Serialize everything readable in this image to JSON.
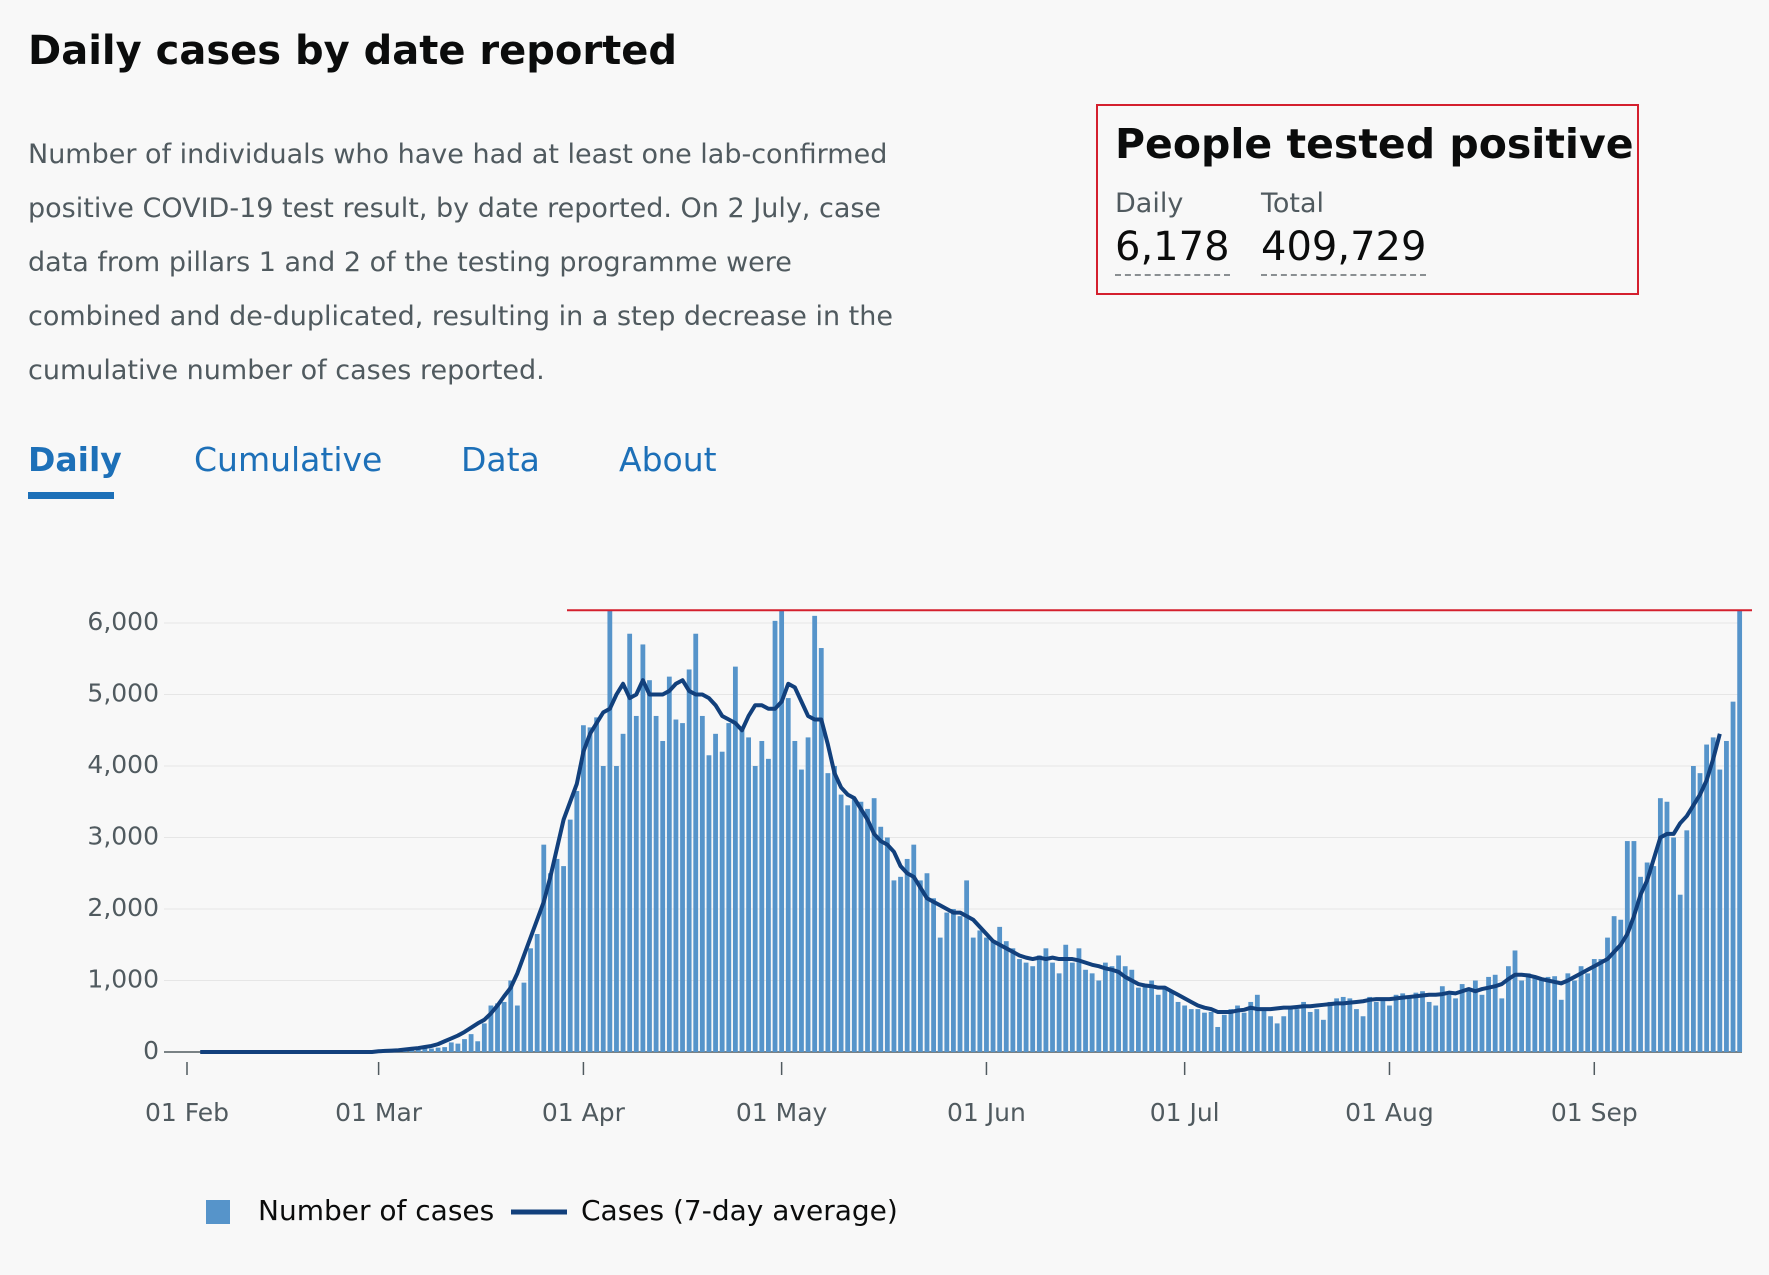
{
  "header": {
    "title": "Daily cases by date reported",
    "description": "Number of individuals who have had at least one lab-confirmed positive COVID-19 test result, by date reported. On 2 July, case data from pillars 1 and 2 of the testing programme were combined and de-duplicated, resulting in a step decrease in the cumulative number of cases reported."
  },
  "headline": {
    "title": "People tested positive",
    "daily_label": "Daily",
    "daily_value": "6,178",
    "total_label": "Total",
    "total_value": "409,729"
  },
  "tabs": [
    "Daily",
    "Cumulative",
    "Data",
    "About"
  ],
  "chart_data": {
    "type": "bar",
    "categories": [
      "01 Feb",
      null,
      null,
      null,
      null,
      null,
      null,
      null,
      null,
      null,
      null,
      null,
      null,
      null,
      null,
      null,
      null,
      null,
      null,
      null,
      null,
      null,
      null,
      null,
      null,
      null,
      null,
      null,
      null,
      "01 Mar",
      null,
      null,
      null,
      null,
      null,
      null,
      null,
      null,
      null,
      null,
      null,
      null,
      null,
      null,
      null,
      null,
      null,
      null,
      null,
      null,
      null,
      null,
      null,
      null,
      null,
      null,
      null,
      null,
      null,
      null,
      "01 Apr",
      null,
      null,
      null,
      null,
      null,
      null,
      null,
      null,
      null,
      null,
      null,
      null,
      null,
      null,
      null,
      null,
      null,
      null,
      null,
      null,
      null,
      null,
      null,
      null,
      null,
      null,
      null,
      null,
      null,
      "01 May",
      null,
      null,
      null,
      null,
      null,
      null,
      null,
      null,
      null,
      null,
      null,
      null,
      null,
      null,
      null,
      null,
      null,
      null,
      null,
      null,
      null,
      null,
      null,
      null,
      null,
      null,
      null,
      null,
      null,
      null,
      "01 Jun",
      null,
      null,
      null,
      null,
      null,
      null,
      null,
      null,
      null,
      null,
      null,
      null,
      null,
      null,
      null,
      null,
      null,
      null,
      null,
      null,
      null,
      null,
      null,
      null,
      null,
      null,
      null,
      null,
      null,
      "01 Jul",
      null,
      null,
      null,
      null,
      null,
      null,
      null,
      null,
      null,
      null,
      null,
      null,
      null,
      null,
      null,
      null,
      null,
      null,
      null,
      null,
      null,
      null,
      null,
      null,
      null,
      null,
      null,
      null,
      null,
      null,
      "01 Aug",
      null,
      null,
      null,
      null,
      null,
      null,
      null,
      null,
      null,
      null,
      null,
      null,
      null,
      null,
      null,
      null,
      null,
      null,
      null,
      null,
      null,
      null,
      null,
      null,
      null,
      null,
      null,
      null,
      null,
      null,
      "01 Sep",
      null,
      null,
      null,
      null,
      null,
      null,
      null,
      null,
      null,
      null,
      null,
      null,
      null,
      null,
      null,
      null,
      null,
      null,
      null,
      null,
      null,
      null
    ],
    "series": [
      {
        "name": "Number of cases",
        "color": "#5694ca",
        "type": "bar",
        "values": [
          0,
          0,
          0,
          0,
          0,
          0,
          0,
          0,
          0,
          0,
          0,
          0,
          0,
          0,
          0,
          0,
          0,
          0,
          0,
          0,
          0,
          0,
          0,
          0,
          0,
          0,
          0,
          0,
          0,
          12,
          4,
          11,
          34,
          30,
          48,
          43,
          67,
          48,
          61,
          68,
          134,
          117,
          180,
          250,
          150,
          400,
          650,
          680,
          700,
          1000,
          650,
          970,
          1450,
          1650,
          2900,
          2500,
          2700,
          2600,
          3250,
          3650,
          4570,
          4540,
          4680,
          4000,
          6170,
          4000,
          4450,
          5850,
          4700,
          5700,
          5200,
          4700,
          4350,
          5250,
          4650,
          4600,
          5350,
          5850,
          4700,
          4150,
          4450,
          4200,
          4600,
          5390,
          4550,
          4400,
          4000,
          4350,
          4100,
          6030,
          6170,
          4950,
          4350,
          3950,
          4400,
          6100,
          5650,
          3900,
          4000,
          3600,
          3450,
          3550,
          3500,
          3400,
          3550,
          3150,
          3000,
          2400,
          2450,
          2700,
          2900,
          2400,
          2500,
          2150,
          1600,
          1950,
          2000,
          1900,
          2400,
          1600,
          1700,
          1600,
          1550,
          1750,
          1550,
          1450,
          1300,
          1250,
          1200,
          1350,
          1450,
          1250,
          1100,
          1500,
          1250,
          1450,
          1150,
          1100,
          1000,
          1250,
          1200,
          1350,
          1200,
          1150,
          900,
          950,
          1000,
          800,
          900,
          850,
          700,
          650,
          600,
          600,
          550,
          560,
          350,
          520,
          600,
          650,
          550,
          700,
          800,
          600,
          500,
          400,
          500,
          620,
          600,
          700,
          560,
          600,
          450,
          700,
          750,
          770,
          750,
          600,
          500,
          770,
          700,
          750,
          650,
          800,
          820,
          750,
          830,
          850,
          700,
          650,
          920,
          800,
          750,
          950,
          880,
          1000,
          800,
          1050,
          1080,
          750,
          1200,
          1420,
          1000,
          1100,
          1050,
          1000,
          1050,
          1060,
          730,
          1100,
          1000,
          1200,
          1100,
          1300,
          1300,
          1600,
          1900,
          1850,
          2950,
          2950,
          2450,
          2650,
          2600,
          3550,
          3500,
          3000,
          2200,
          3100,
          4000,
          3900,
          4300,
          4400,
          3950,
          4350,
          4900,
          6178
        ]
      },
      {
        "name": "Cases (7-day average)",
        "color": "#12407c",
        "type": "line",
        "values": [
          null,
          null,
          0,
          0,
          0,
          0,
          0,
          0,
          0,
          0,
          0,
          0,
          0,
          0,
          0,
          0,
          0,
          0,
          0,
          0,
          0,
          0,
          0,
          0,
          0,
          0,
          0,
          0,
          0,
          10,
          15,
          20,
          25,
          35,
          45,
          55,
          70,
          85,
          110,
          150,
          190,
          230,
          280,
          340,
          400,
          450,
          540,
          650,
          780,
          900,
          1100,
          1350,
          1600,
          1850,
          2100,
          2450,
          2850,
          3250,
          3500,
          3750,
          4200,
          4450,
          4600,
          4750,
          4800,
          5000,
          5150,
          4950,
          5000,
          5200,
          5000,
          5000,
          5000,
          5050,
          5150,
          5200,
          5050,
          5000,
          5000,
          4950,
          4850,
          4700,
          4650,
          4600,
          4500,
          4700,
          4850,
          4850,
          4800,
          4800,
          4900,
          5150,
          5100,
          4900,
          4700,
          4650,
          4650,
          4300,
          3900,
          3700,
          3600,
          3550,
          3400,
          3250,
          3050,
          2950,
          2900,
          2800,
          2600,
          2500,
          2450,
          2300,
          2150,
          2100,
          2050,
          2000,
          1950,
          1950,
          1900,
          1850,
          1750,
          1650,
          1550,
          1500,
          1450,
          1400,
          1350,
          1320,
          1300,
          1320,
          1300,
          1320,
          1300,
          1300,
          1300,
          1280,
          1250,
          1220,
          1200,
          1170,
          1150,
          1120,
          1050,
          1000,
          950,
          930,
          920,
          900,
          900,
          850,
          800,
          750,
          700,
          650,
          620,
          600,
          560,
          560,
          560,
          580,
          590,
          620,
          600,
          600,
          600,
          610,
          620,
          620,
          630,
          640,
          640,
          650,
          660,
          670,
          680,
          680,
          690,
          700,
          710,
          730,
          740,
          740,
          740,
          750,
          760,
          770,
          780,
          790,
          800,
          800,
          810,
          830,
          820,
          850,
          880,
          850,
          880,
          900,
          920,
          950,
          1020,
          1080,
          1080,
          1070,
          1050,
          1020,
          1000,
          980,
          960,
          1000,
          1050,
          1100,
          1150,
          1200,
          1250,
          1300,
          1400,
          1500,
          1650,
          1900,
          2200,
          2400,
          2700,
          3000,
          3050,
          3050,
          3200,
          3300,
          3450,
          3600,
          3800,
          4100,
          4450,
          null,
          null,
          null
        ]
      }
    ],
    "ylim": [
      0,
      6000
    ],
    "yticks": [
      0,
      {
        "value": 1000,
        "label": "1,000"
      },
      {
        "value": 2000,
        "label": "2,000"
      },
      {
        "value": 3000,
        "label": "3,000"
      },
      {
        "value": 4000,
        "label": "4,000"
      },
      {
        "value": 5000,
        "label": "5,000"
      },
      {
        "value": 6000,
        "label": "6,000"
      }
    ],
    "grid": true
  }
}
